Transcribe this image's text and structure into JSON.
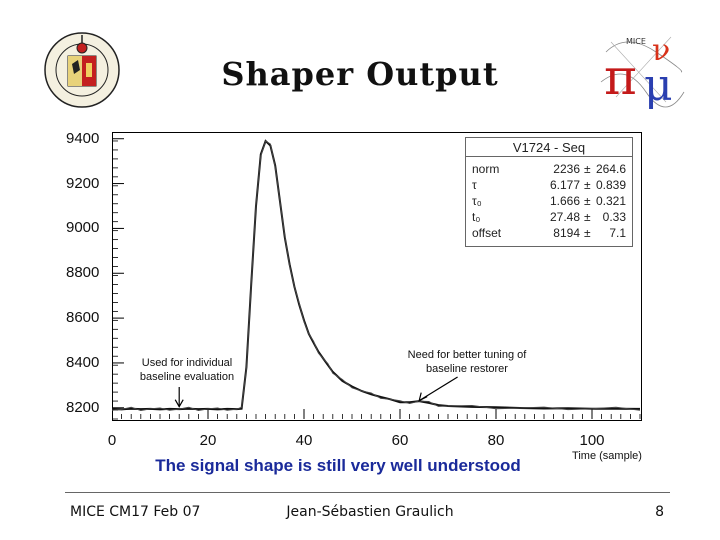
{
  "slide": {
    "title": "Shaper Output",
    "caption": "The signal shape is still very well understood",
    "footer_left": "MICE CM17 Feb 07",
    "footer_center": "Jean-Sébastien Graulich",
    "page_number": "8",
    "left_logo": "university-of-geneva-seal",
    "right_logo": "mice-pi-mu-logo"
  },
  "chart_data": {
    "type": "line",
    "title": "",
    "xlabel": "Time (sample)",
    "ylabel": "",
    "xlim": [
      0,
      110
    ],
    "ylim": [
      8150,
      9430
    ],
    "x_ticks": [
      0,
      20,
      40,
      60,
      80,
      100
    ],
    "y_ticks": [
      8200,
      8400,
      8600,
      8800,
      9000,
      9200,
      9400
    ],
    "grid": false,
    "stats_box": {
      "title": "V1724 - Seq",
      "rows": [
        {
          "name": "norm",
          "value": "2236",
          "pm": "±",
          "error": "264.6"
        },
        {
          "name": "τ",
          "value": "6.177",
          "pm": "±",
          "error": "0.839"
        },
        {
          "name": "τ₀",
          "value": "1.666",
          "pm": "±",
          "error": "0.321"
        },
        {
          "name": "t₀",
          "value": "27.48",
          "pm": "±",
          "error": "0.33"
        },
        {
          "name": "offset",
          "value": "8194",
          "pm": "±",
          "error": "7.1"
        }
      ]
    },
    "series": [
      {
        "x": [
          0,
          2,
          4,
          6,
          8,
          10,
          12,
          14,
          16,
          18,
          20,
          22,
          24,
          26,
          27,
          28,
          29,
          30,
          31,
          32,
          33,
          34,
          35,
          36,
          37,
          38,
          39,
          40,
          41,
          42,
          43,
          44,
          45,
          46,
          47,
          48,
          50,
          52,
          54,
          56,
          58,
          60,
          62,
          64,
          66,
          68,
          70,
          75,
          80,
          85,
          90,
          95,
          100,
          105,
          110
        ],
        "y": [
          8195,
          8193,
          8196,
          8194,
          8195,
          8193,
          8195,
          8194,
          8196,
          8194,
          8195,
          8193,
          8195,
          8194,
          8196,
          8380,
          8750,
          9100,
          9330,
          9390,
          9370,
          9280,
          9120,
          8960,
          8840,
          8740,
          8660,
          8590,
          8530,
          8490,
          8450,
          8420,
          8390,
          8360,
          8340,
          8320,
          8295,
          8275,
          8260,
          8248,
          8238,
          8225,
          8225,
          8230,
          8222,
          8212,
          8208,
          8204,
          8202,
          8199,
          8197,
          8198,
          8196,
          8196,
          8195
        ]
      }
    ],
    "annotations": [
      {
        "text": "Used for individual baseline evaluation",
        "x": 14,
        "y": 8195
      },
      {
        "text": "Need for better tuning of baseline restorer",
        "x": 64,
        "y": 8228
      }
    ]
  }
}
